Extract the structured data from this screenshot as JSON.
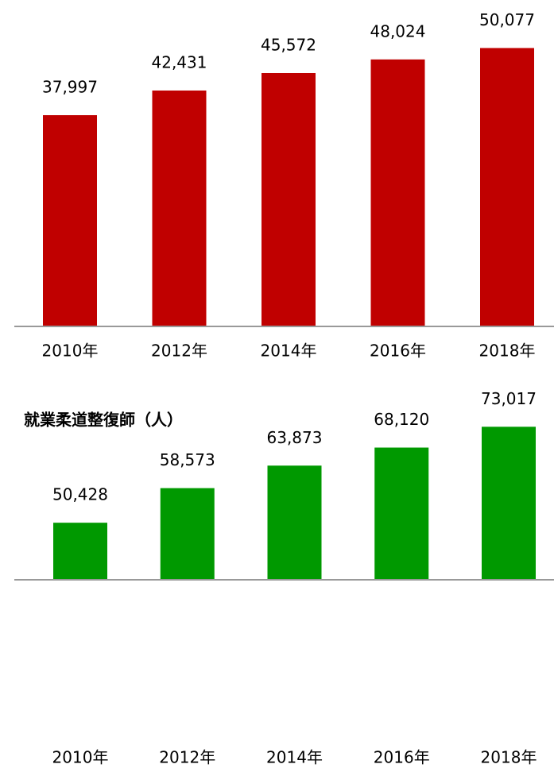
{
  "chart_data": [
    {
      "type": "bar",
      "categories": [
        "2010年",
        "2012年",
        "2014年",
        "2016年",
        "2018年"
      ],
      "values": [
        37997,
        42431,
        45572,
        48024,
        50077
      ],
      "value_labels": [
        "37,997",
        "42,431",
        "45,572",
        "48,024",
        "50,077"
      ],
      "color": "#c00000",
      "ylim": [
        0,
        55000
      ]
    },
    {
      "type": "bar",
      "title": "就業柔道整復師（人）",
      "categories": [
        "2010年",
        "2012年",
        "2014年",
        "2016年",
        "2018年"
      ],
      "values": [
        50428,
        58573,
        63873,
        68120,
        73017
      ],
      "value_labels": [
        "50,428",
        "58,573",
        "63,873",
        "68,120",
        "73,017"
      ],
      "color": "#009900",
      "ylim": [
        37000,
        80000
      ]
    }
  ]
}
